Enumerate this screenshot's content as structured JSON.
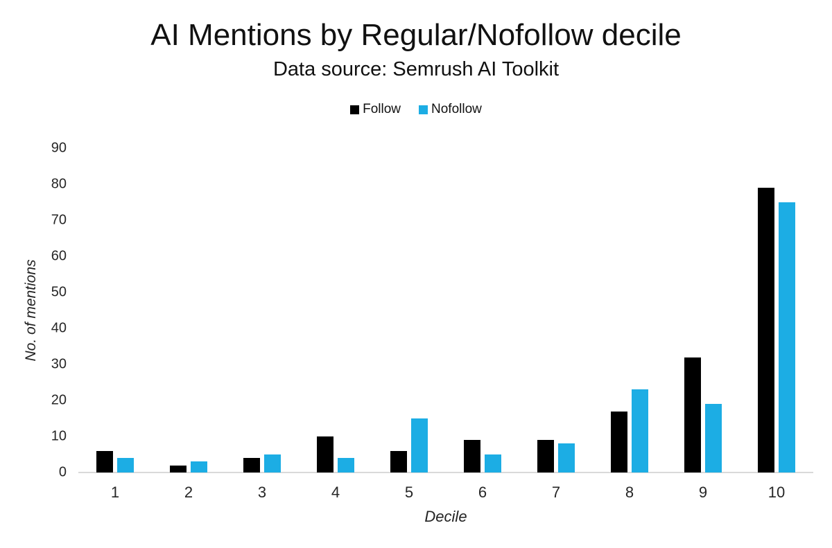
{
  "chart_data": {
    "type": "bar",
    "title": "AI Mentions by Regular/Nofollow decile",
    "subtitle": "Data source: Semrush AI Toolkit",
    "xlabel": "Decile",
    "ylabel": "No. of mentions",
    "categories": [
      "1",
      "2",
      "3",
      "4",
      "5",
      "6",
      "7",
      "8",
      "9",
      "10"
    ],
    "series": [
      {
        "name": "Follow",
        "color": "#000000",
        "values": [
          6,
          2,
          4,
          10,
          6,
          9,
          9,
          17,
          32,
          79
        ]
      },
      {
        "name": "Nofollow",
        "color": "#1CADE4",
        "values": [
          4,
          3,
          5,
          4,
          15,
          5,
          8,
          23,
          19,
          75
        ]
      }
    ],
    "ylim": [
      0,
      90
    ],
    "ytick_step": 10,
    "ytick_labels": [
      "0",
      "10",
      "20",
      "30",
      "40",
      "50",
      "60",
      "70",
      "80",
      "90"
    ],
    "legend_position": "top-center",
    "grid": false,
    "axis_line_color": "#d9d9d9",
    "background_color": "#ffffff"
  }
}
